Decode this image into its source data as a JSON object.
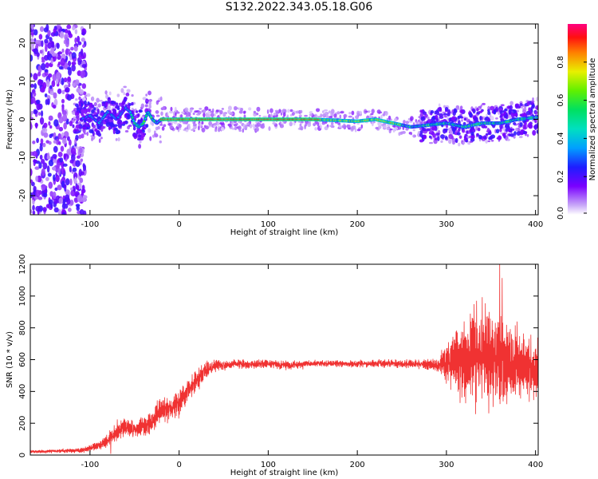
{
  "title": "S132.2022.343.05.18.G06",
  "chart_data": [
    {
      "type": "heatmap",
      "xlabel": "Height of straight line (km)",
      "ylabel": "Frequency (Hz)",
      "xlim": [
        -167,
        403
      ],
      "ylim": [
        -25,
        25
      ],
      "xticks": [
        -100,
        0,
        100,
        200,
        300,
        400
      ],
      "yticks": [
        -20,
        -10,
        0,
        10,
        20
      ],
      "colorbar": {
        "label": "Normalized spectral amplitude",
        "range": [
          0,
          1
        ],
        "ticks": [
          "0.0",
          "0.2",
          "0.4",
          "0.6",
          "0.8"
        ]
      },
      "ridge": {
        "x": [
          -110,
          -100,
          -90,
          -80,
          -70,
          -60,
          -55,
          -50,
          -45,
          -40,
          -35,
          -30,
          -25,
          -20,
          0,
          50,
          100,
          150,
          200,
          220,
          240,
          250,
          260,
          280,
          300,
          320,
          340,
          360,
          380,
          400
        ],
        "y": [
          0,
          1,
          -1,
          2,
          0,
          3,
          2,
          -1,
          -2,
          -1,
          2,
          0,
          -1,
          0,
          0,
          0,
          0,
          0,
          -0.5,
          0,
          -1,
          -1.5,
          -2,
          -1.5,
          -1,
          -2,
          -1,
          -1,
          0,
          0.5
        ]
      },
      "grid": false
    },
    {
      "type": "line",
      "xlabel": "Height of straight line (km)",
      "ylabel": "SNR (10 * v/v)",
      "xlim": [
        -167,
        403
      ],
      "ylim": [
        0,
        1200
      ],
      "xticks": [
        -100,
        0,
        100,
        200,
        300,
        400
      ],
      "yticks": [
        0,
        200,
        400,
        600,
        800,
        1000,
        1200
      ],
      "color": "#f03232",
      "series": [
        {
          "x": [
            -167,
            -140,
            -110,
            -95,
            -80,
            -70,
            -60,
            -50,
            -40,
            -30,
            -20,
            -10,
            0,
            10,
            20,
            30,
            40,
            50,
            60,
            80,
            100,
            120,
            150,
            200,
            250,
            280,
            290,
            300,
            310,
            320,
            330,
            340,
            350,
            360,
            370,
            380,
            390,
            400,
            403
          ],
          "y": [
            20,
            25,
            30,
            50,
            90,
            150,
            180,
            160,
            180,
            220,
            280,
            300,
            330,
            400,
            470,
            530,
            570,
            560,
            575,
            570,
            575,
            565,
            575,
            575,
            575,
            570,
            560,
            580,
            600,
            610,
            620,
            640,
            600,
            600,
            590,
            580,
            560,
            550,
            550
          ],
          "spread": [
            10,
            10,
            15,
            25,
            40,
            60,
            60,
            50,
            60,
            70,
            80,
            80,
            80,
            70,
            60,
            50,
            40,
            30,
            25,
            25,
            25,
            25,
            20,
            20,
            25,
            30,
            40,
            120,
            180,
            260,
            300,
            320,
            280,
            260,
            240,
            220,
            200,
            180,
            180
          ]
        }
      ],
      "grid": false
    }
  ]
}
